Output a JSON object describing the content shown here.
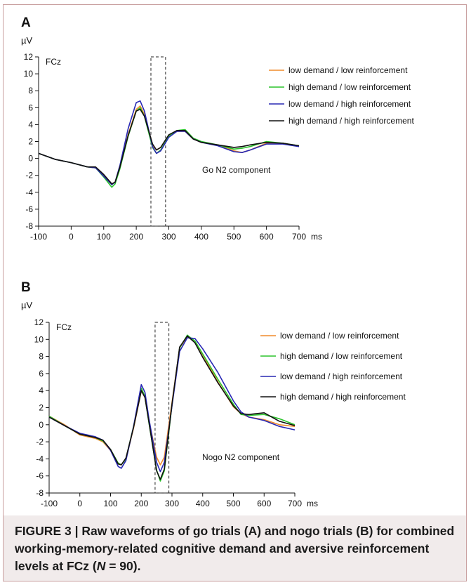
{
  "figure": {
    "caption_prefix": "FIGURE 3 | ",
    "caption_parts": [
      "Raw waveforms of go trials (A) and nogo trials (B) for combined working-memory-related cognitive demand and aversive reinforcement levels at FCz (",
      "N",
      " = 90)."
    ]
  },
  "colors": {
    "low_low": "#f08c2c",
    "high_low": "#2cc42c",
    "low_high": "#2828b4",
    "high_high": "#111111",
    "frame": "#c9a0a0",
    "caption_bg": "#f1ebeb"
  },
  "chart_data": [
    {
      "panel": "A",
      "type": "line",
      "ylabel": "µV",
      "xunit": "ms",
      "channel": "FCz",
      "annotation": "Go N2 component",
      "xlim": [
        -100,
        700
      ],
      "ylim": [
        -8,
        12
      ],
      "xticks": [
        -100,
        0,
        100,
        200,
        300,
        400,
        500,
        600,
        700
      ],
      "yticks": [
        12,
        10,
        8,
        6,
        4,
        2,
        0,
        -2,
        -4,
        -6,
        -8
      ],
      "highlight_window_ms": [
        245,
        290
      ],
      "x": [
        -100,
        -50,
        0,
        50,
        75,
        100,
        125,
        135,
        150,
        175,
        200,
        212,
        225,
        250,
        262,
        275,
        300,
        325,
        350,
        375,
        400,
        450,
        500,
        525,
        550,
        600,
        650,
        700
      ],
      "series": [
        {
          "name": "low demand / low reinforcement",
          "color_key": "low_low",
          "values": [
            0.6,
            -0.1,
            -0.5,
            -1.0,
            -1.1,
            -2.0,
            -3.0,
            -2.8,
            -1.0,
            2.8,
            5.8,
            6.2,
            5.2,
            1.6,
            1.0,
            1.3,
            2.7,
            3.2,
            3.2,
            2.3,
            1.9,
            1.6,
            0.9,
            0.7,
            1.0,
            1.8,
            1.8,
            1.4
          ]
        },
        {
          "name": "high demand / low reinforcement",
          "color_key": "high_low",
          "values": [
            0.6,
            -0.1,
            -0.5,
            -1.0,
            -1.1,
            -2.2,
            -3.4,
            -3.0,
            -1.2,
            2.6,
            5.6,
            6.0,
            5.0,
            1.3,
            0.6,
            1.0,
            2.6,
            3.3,
            3.4,
            2.4,
            2.0,
            1.6,
            1.1,
            1.2,
            1.4,
            2.0,
            1.8,
            1.5
          ]
        },
        {
          "name": "low demand / high reinforcement",
          "color_key": "low_high",
          "values": [
            0.6,
            -0.1,
            -0.5,
            -1.0,
            -1.1,
            -2.1,
            -3.1,
            -2.8,
            -0.8,
            3.5,
            6.6,
            6.8,
            5.6,
            1.4,
            0.6,
            0.9,
            2.5,
            3.2,
            3.2,
            2.3,
            1.9,
            1.5,
            0.8,
            0.7,
            1.0,
            1.7,
            1.7,
            1.4
          ]
        },
        {
          "name": "high demand / high reinforcement",
          "color_key": "high_high",
          "values": [
            0.6,
            -0.1,
            -0.5,
            -1.0,
            -1.0,
            -1.9,
            -3.0,
            -2.8,
            -1.0,
            2.7,
            5.6,
            5.8,
            5.0,
            1.7,
            1.0,
            1.3,
            2.8,
            3.3,
            3.3,
            2.3,
            1.9,
            1.6,
            1.3,
            1.4,
            1.6,
            1.9,
            1.8,
            1.5
          ]
        }
      ]
    },
    {
      "panel": "B",
      "type": "line",
      "ylabel": "µV",
      "xunit": "ms",
      "channel": "FCz",
      "annotation": "Nogo N2 component",
      "xlim": [
        -100,
        700
      ],
      "ylim": [
        -8,
        12
      ],
      "xticks": [
        -100,
        0,
        100,
        200,
        300,
        400,
        500,
        600,
        700
      ],
      "yticks": [
        12,
        10,
        8,
        6,
        4,
        2,
        0,
        -2,
        -4,
        -6,
        -8
      ],
      "highlight_window_ms": [
        245,
        290
      ],
      "x": [
        -100,
        -50,
        0,
        50,
        75,
        100,
        125,
        135,
        150,
        175,
        200,
        212,
        225,
        250,
        262,
        275,
        300,
        325,
        350,
        375,
        400,
        450,
        500,
        525,
        550,
        600,
        650,
        700
      ],
      "series": [
        {
          "name": "low demand / low reinforcement",
          "color_key": "low_low",
          "values": [
            1.0,
            0.0,
            -1.2,
            -1.6,
            -2.0,
            -3.0,
            -4.6,
            -4.7,
            -4.0,
            -0.4,
            4.0,
            3.2,
            0.5,
            -3.8,
            -4.7,
            -3.8,
            2.6,
            9.0,
            10.3,
            9.8,
            8.2,
            5.0,
            2.1,
            1.3,
            0.9,
            0.6,
            0.0,
            -0.2
          ]
        },
        {
          "name": "high demand / low reinforcement",
          "color_key": "high_low",
          "values": [
            1.0,
            -0.1,
            -1.1,
            -1.5,
            -1.9,
            -2.9,
            -4.5,
            -4.7,
            -4.0,
            -0.2,
            4.3,
            3.3,
            0.2,
            -5.3,
            -6.6,
            -5.4,
            2.3,
            9.0,
            10.5,
            9.8,
            8.3,
            5.3,
            2.4,
            1.2,
            1.1,
            1.2,
            0.7,
            0.0
          ]
        },
        {
          "name": "low demand / high reinforcement",
          "color_key": "low_high",
          "values": [
            0.9,
            -0.1,
            -1.0,
            -1.4,
            -1.8,
            -3.0,
            -4.9,
            -5.1,
            -4.2,
            -0.2,
            4.7,
            3.8,
            0.7,
            -4.4,
            -5.5,
            -4.4,
            2.2,
            8.6,
            10.2,
            10.1,
            8.9,
            6.1,
            2.8,
            1.5,
            0.9,
            0.5,
            -0.2,
            -0.6
          ]
        },
        {
          "name": "high demand / high reinforcement",
          "color_key": "high_high",
          "values": [
            0.9,
            -0.1,
            -1.1,
            -1.5,
            -1.8,
            -2.9,
            -4.6,
            -4.7,
            -3.9,
            -0.3,
            4.0,
            3.2,
            0.3,
            -5.4,
            -6.4,
            -5.2,
            2.4,
            9.1,
            10.4,
            9.6,
            7.9,
            4.9,
            2.2,
            1.3,
            1.2,
            1.4,
            0.4,
            -0.1
          ]
        }
      ]
    }
  ]
}
